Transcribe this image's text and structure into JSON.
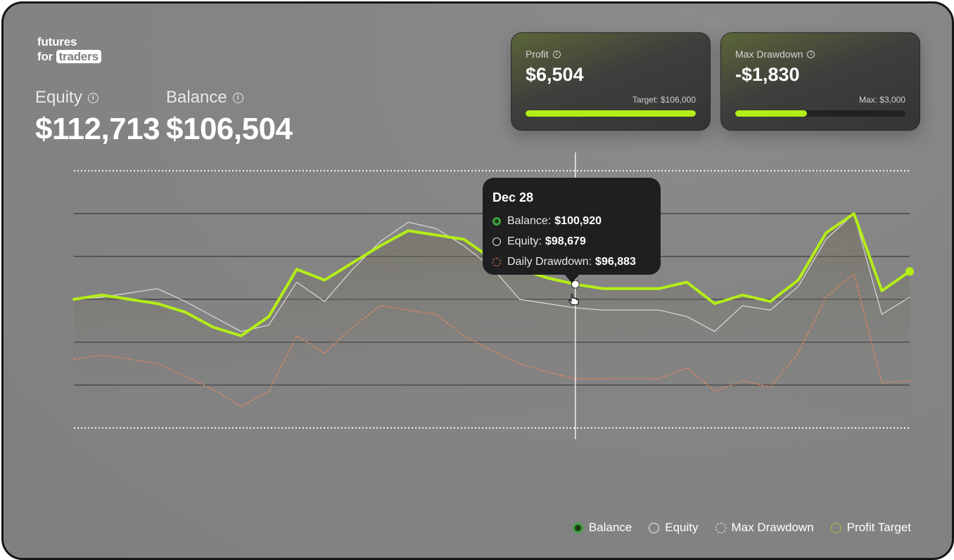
{
  "brand": {
    "line1": "futures",
    "line2_prefix": "for",
    "line2_highlight": "traders"
  },
  "stats": {
    "equity": {
      "label": "Equity",
      "value": "$112,713"
    },
    "balance": {
      "label": "Balance",
      "value": "$106,504"
    }
  },
  "cards": {
    "profit": {
      "label": "Profit",
      "value": "$6,504",
      "sub": "Target: $106,000",
      "progress": 1.0
    },
    "drawdown": {
      "label": "Max Drawdown",
      "value": "-$1,830",
      "sub": "Max: $3,000",
      "progress": 0.42
    }
  },
  "tooltip": {
    "date": "Dec 28",
    "rows": [
      {
        "label": "Balance:",
        "value": "$100,920"
      },
      {
        "label": "Equity:",
        "value": "$98,679"
      },
      {
        "label": "Daily Drawdown:",
        "value": "$96,883"
      }
    ]
  },
  "legend": [
    {
      "label": "Balance"
    },
    {
      "label": "Equity"
    },
    {
      "label": "Max Drawdown"
    },
    {
      "label": "Profit Target"
    }
  ],
  "colors": {
    "balance": "#b4ee17",
    "equity": "#e6e6e6",
    "drawdown": "#e8875a",
    "accent": "#b4ee17",
    "tooltip_bg": "#1f1f21"
  },
  "icons": {
    "info": "info-circle-icon",
    "cursor": "hand-pointer-icon"
  },
  "chart_data": {
    "type": "line",
    "ylim": [
      91000,
      109000
    ],
    "y_reference_lines": [
      {
        "value": 106000,
        "style": "dotted",
        "meaning": "Profit Target"
      },
      {
        "value": 94000,
        "style": "dotted",
        "meaning": "Max Drawdown"
      }
    ],
    "y_grid": [
      104000,
      102000,
      100000,
      98000,
      96000
    ],
    "x": [
      1,
      2,
      3,
      4,
      5,
      6,
      7,
      8,
      9,
      10,
      11,
      12,
      13,
      14,
      15,
      16,
      17,
      18,
      19,
      20,
      21,
      22,
      23,
      24,
      25,
      26,
      27,
      28,
      29,
      30,
      31
    ],
    "series": [
      {
        "name": "Balance",
        "values": [
          100000,
          100200,
          100000,
          99800,
          99400,
          98700,
          98300,
          99200,
          101400,
          100900,
          101700,
          102500,
          103200,
          103000,
          102800,
          101900,
          101400,
          101000,
          100700,
          100500,
          100500,
          100500,
          100800,
          99800,
          100200,
          99900,
          100900,
          103100,
          104000,
          100400,
          101300
        ]
      },
      {
        "name": "Equity",
        "values": [
          100000,
          100100,
          100300,
          100500,
          99900,
          99200,
          98500,
          98800,
          100800,
          99900,
          101400,
          102700,
          103600,
          103300,
          102500,
          101500,
          100000,
          99800,
          99600,
          99500,
          99500,
          99500,
          99200,
          98500,
          99700,
          99500,
          100600,
          102800,
          104000,
          99300,
          100100
        ]
      },
      {
        "name": "Max Drawdown",
        "values": [
          97200,
          97400,
          97200,
          97000,
          96400,
          95800,
          95000,
          95700,
          98300,
          97500,
          98700,
          99700,
          99500,
          99300,
          98300,
          97600,
          97000,
          96600,
          96300,
          96300,
          96300,
          96300,
          96800,
          95700,
          96200,
          95900,
          97500,
          100100,
          101200,
          96100,
          96200
        ]
      }
    ]
  }
}
